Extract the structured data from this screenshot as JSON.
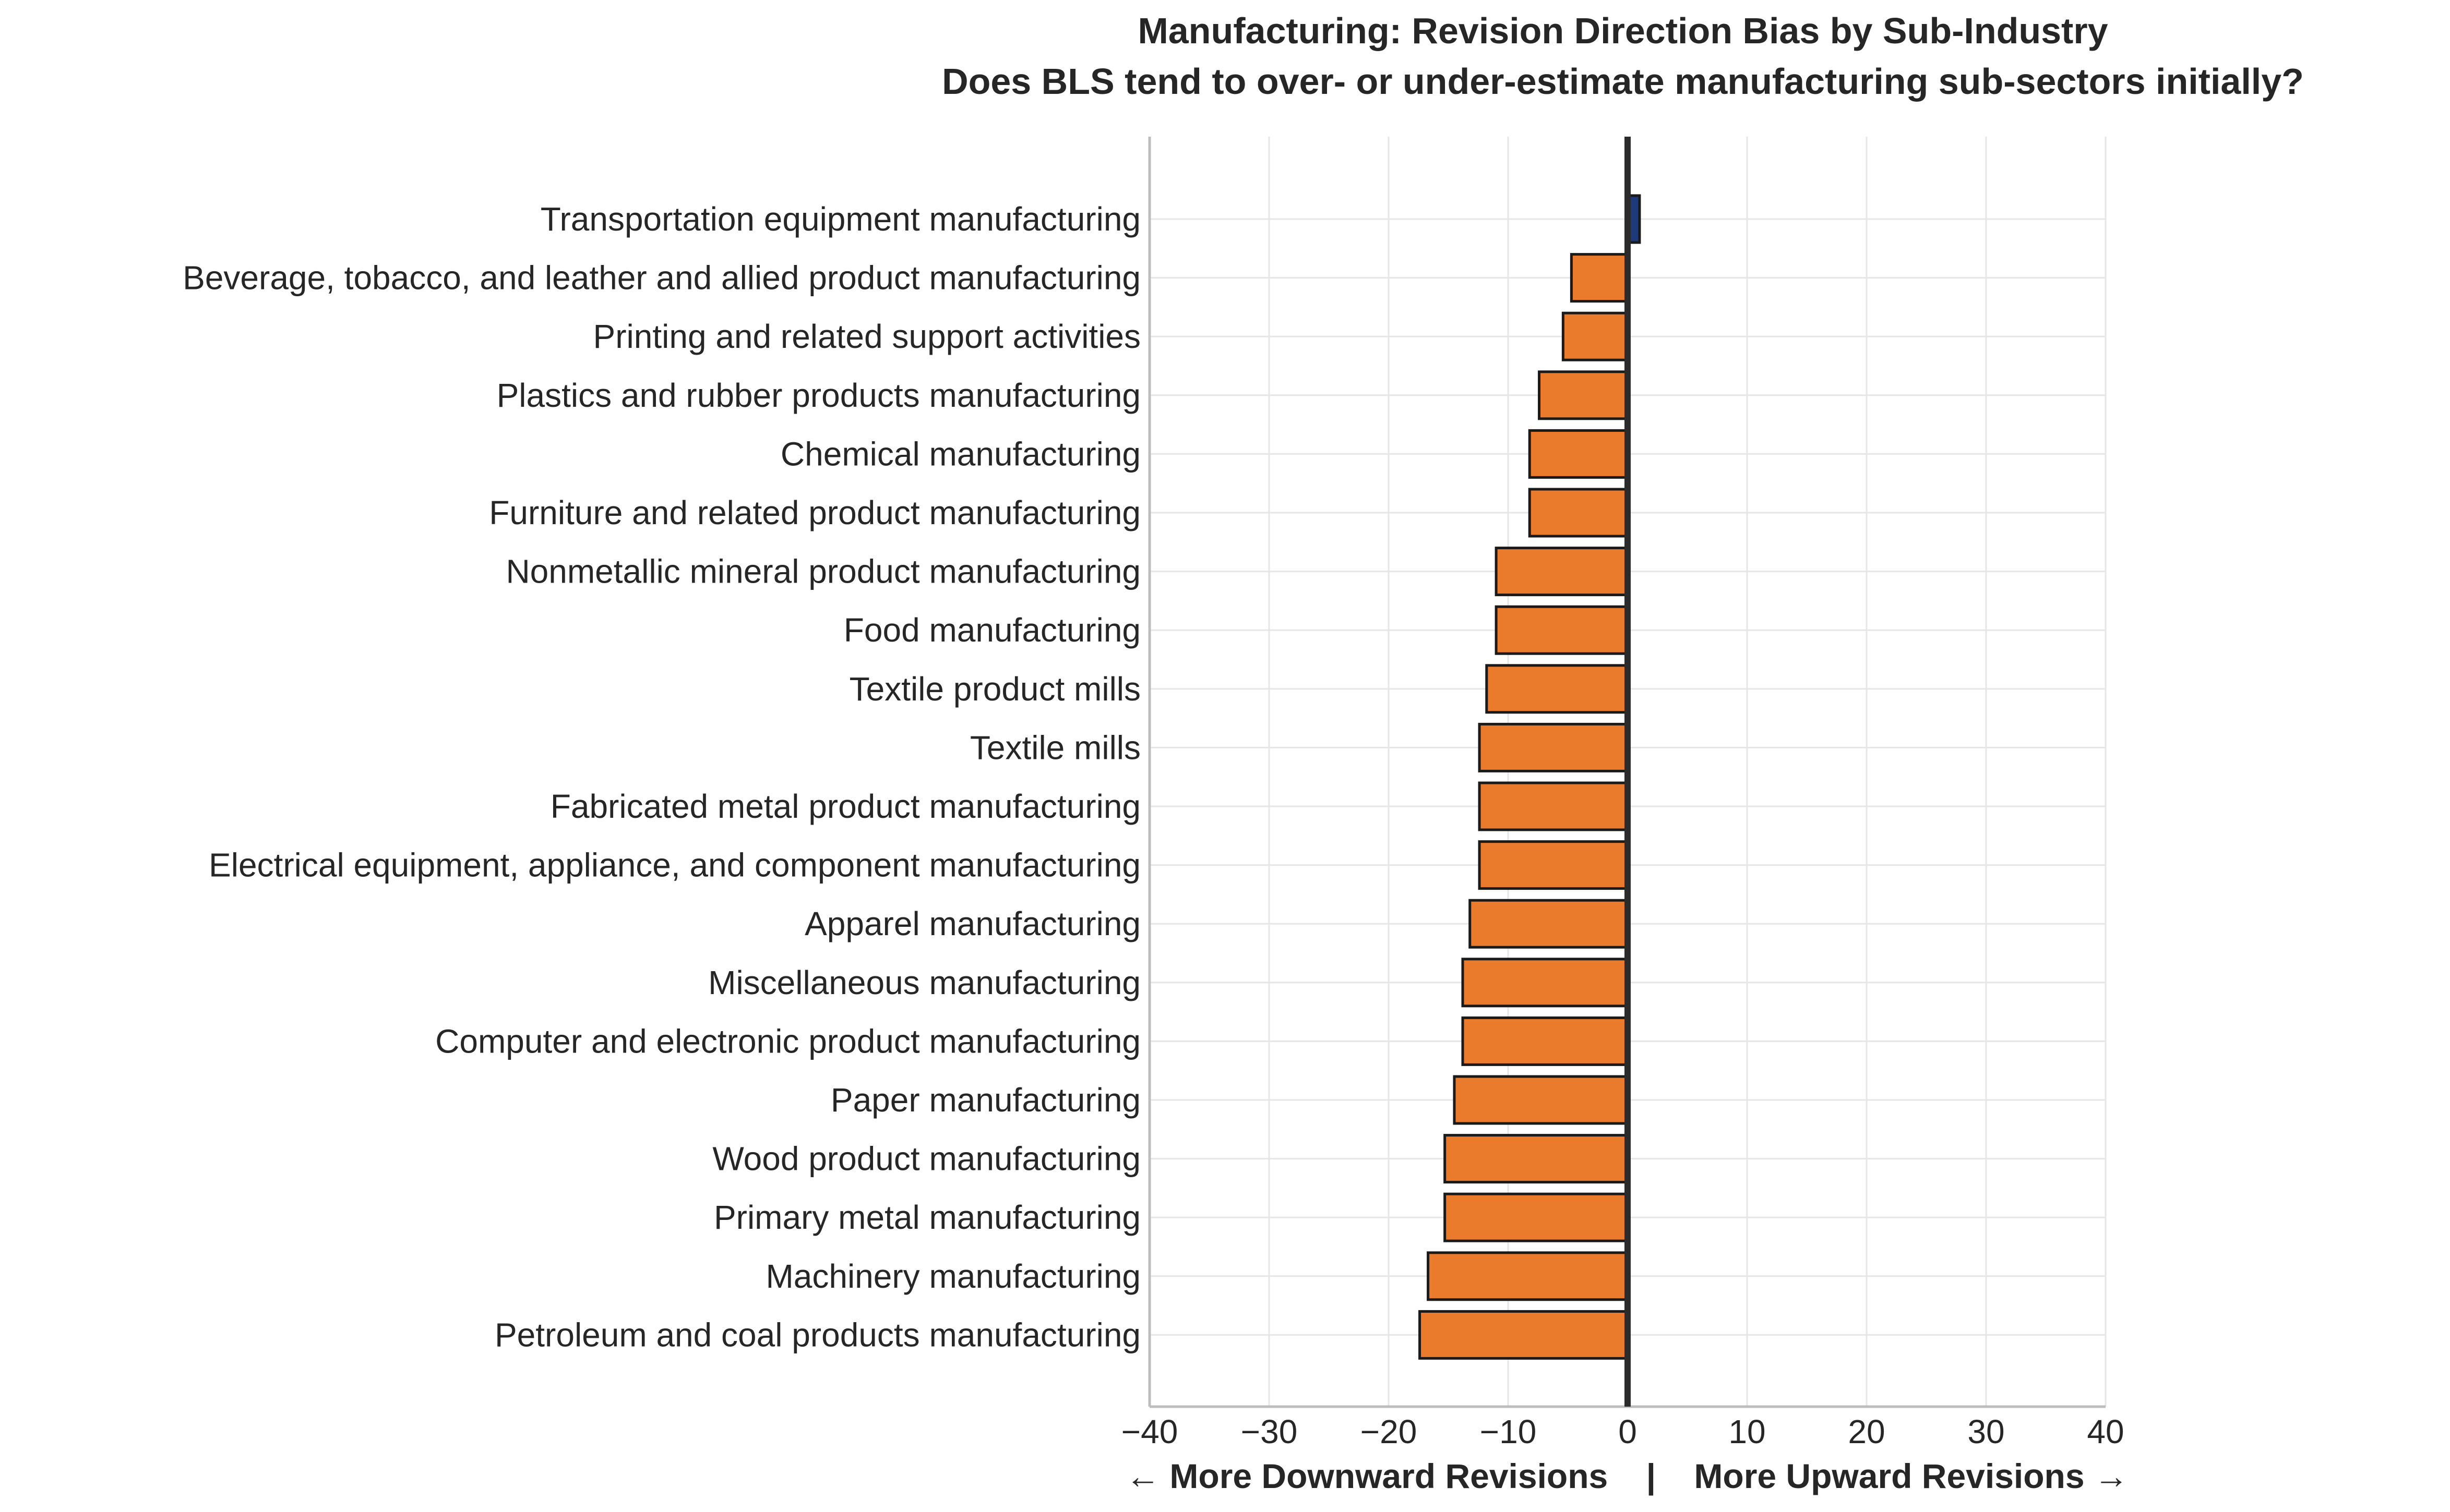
{
  "chart_data": {
    "type": "bar",
    "orientation": "horizontal",
    "title": "Manufacturing: Revision Direction Bias by Sub-Industry",
    "subtitle": "Does BLS tend to over- or under-estimate manufacturing sub-sectors initially?",
    "xlabel": "← More Downward Revisions    |    More Upward Revisions →",
    "ylabel": "",
    "xlim": [
      -40,
      40
    ],
    "xticks": [
      -40,
      -30,
      -20,
      -10,
      0,
      10,
      20,
      30,
      40
    ],
    "xtick_labels": [
      "−40",
      "−30",
      "−20",
      "−10",
      "0",
      "10",
      "20",
      "30",
      "40"
    ],
    "grid": true,
    "categories": [
      "Transportation equipment manufacturing",
      "Beverage, tobacco, and leather and allied product manufacturing",
      "Printing and related support activities",
      "Plastics and rubber products manufacturing",
      "Chemical manufacturing",
      "Furniture and related product manufacturing",
      "Nonmetallic mineral product manufacturing",
      "Food manufacturing",
      "Textile product mills",
      "Textile mills",
      "Fabricated metal product manufacturing",
      "Electrical equipment, appliance, and component manufacturing",
      "Apparel manufacturing",
      "Miscellaneous manufacturing",
      "Computer and electronic product manufacturing",
      "Paper manufacturing",
      "Wood product manufacturing",
      "Primary metal manufacturing",
      "Machinery manufacturing",
      "Petroleum and coal products manufacturing"
    ],
    "values": [
      1,
      -4.7,
      -5.4,
      -7.4,
      -8.2,
      -8.2,
      -11,
      -11,
      -11.8,
      -12.4,
      -12.4,
      -12.4,
      -13.2,
      -13.8,
      -13.8,
      -14.5,
      -15.3,
      -15.3,
      -16.7,
      -17.4
    ],
    "colors": {
      "positive": "#1f3a7a",
      "negative": "#ea7a2c",
      "edge": "#1a1a1a",
      "zero_line": "#2b2b2b",
      "grid": "#e6e6e6",
      "axis": "#bdbdbd"
    }
  }
}
